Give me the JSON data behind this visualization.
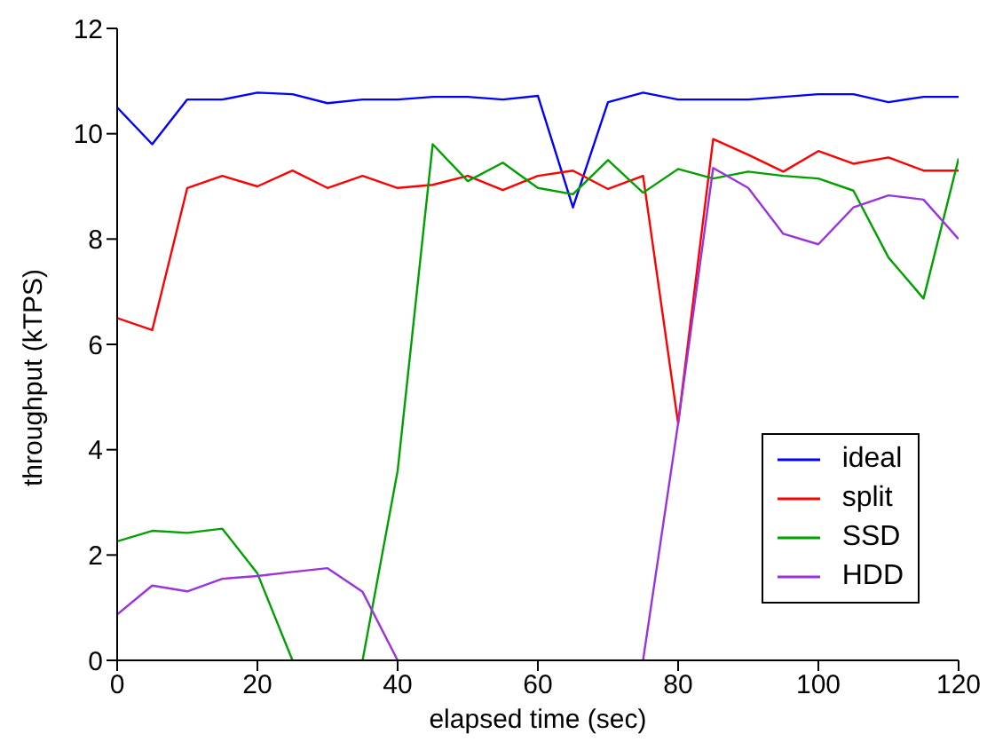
{
  "chart_data": {
    "type": "line",
    "xlabel": "elapsed time (sec)",
    "ylabel": "throughput (kTPS)",
    "x": [
      0,
      5,
      10,
      15,
      20,
      25,
      30,
      35,
      40,
      45,
      50,
      55,
      60,
      65,
      70,
      75,
      80,
      85,
      90,
      95,
      100,
      105,
      110,
      115,
      120
    ],
    "xlim": [
      0,
      120
    ],
    "xticks": [
      0,
      20,
      40,
      60,
      80,
      100,
      120
    ],
    "ylim": [
      0,
      12
    ],
    "yticks": [
      0,
      2,
      4,
      6,
      8,
      10,
      12
    ],
    "grid": false,
    "legend": "bottom right",
    "marker": "none",
    "line_style": "solid",
    "series": [
      {
        "name": "ideal",
        "color": "#0000ff",
        "values": [
          10.5,
          9.8,
          10.65,
          10.65,
          10.78,
          10.75,
          10.58,
          10.65,
          10.65,
          10.7,
          10.7,
          10.65,
          10.72,
          8.6,
          10.6,
          10.78,
          10.65,
          10.65,
          10.65,
          10.7,
          10.75,
          10.75,
          10.6,
          10.7,
          10.7
        ]
      },
      {
        "name": "split",
        "color": "#ff0000",
        "values": [
          6.5,
          6.27,
          8.97,
          9.2,
          9.0,
          9.3,
          8.97,
          9.2,
          8.97,
          9.03,
          9.2,
          8.93,
          9.2,
          9.3,
          8.95,
          9.2,
          4.5,
          9.9,
          9.6,
          9.28,
          9.67,
          9.43,
          9.55,
          9.3,
          9.3
        ]
      },
      {
        "name": "SSD",
        "color": "#00a000",
        "values": [
          2.26,
          2.46,
          2.42,
          2.5,
          1.65,
          0,
          null,
          0,
          3.6,
          9.8,
          9.1,
          9.45,
          8.97,
          8.85,
          9.5,
          8.88,
          9.33,
          9.15,
          9.28,
          9.2,
          9.15,
          8.92,
          7.65,
          6.87,
          9.53
        ]
      },
      {
        "name": "HDD",
        "color": "#9933dd",
        "values": [
          0.87,
          1.42,
          1.31,
          1.55,
          1.6,
          1.68,
          1.75,
          1.3,
          0,
          null,
          null,
          null,
          null,
          null,
          null,
          0,
          4.5,
          9.35,
          8.97,
          8.1,
          7.9,
          8.6,
          8.83,
          8.75,
          8.0
        ]
      }
    ]
  }
}
